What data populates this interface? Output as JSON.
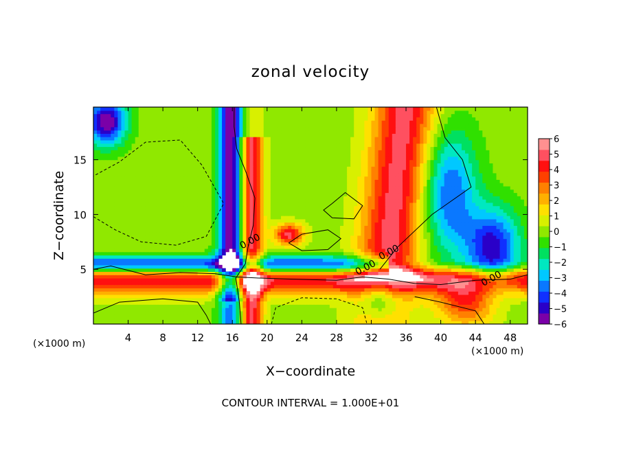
{
  "chart_data": {
    "type": "heatmap",
    "title": "zonal velocity",
    "xlabel": "X−coordinate",
    "ylabel": "Z−coordinate",
    "x_unit_left": "(×1000 m)",
    "x_unit_right": "(×1000 m)",
    "footer": "CONTOUR INTERVAL = 1.000E+01",
    "xlim": [
      0,
      50
    ],
    "ylim": [
      0,
      19.8
    ],
    "x_ticks": [
      4,
      8,
      12,
      16,
      20,
      24,
      28,
      32,
      36,
      40,
      44,
      48
    ],
    "x_tick_labels": [
      "4",
      "8",
      "12",
      "16",
      "20",
      "24",
      "28",
      "32",
      "36",
      "40",
      "44",
      "48"
    ],
    "y_ticks": [
      5,
      10,
      15
    ],
    "y_tick_labels": [
      "5",
      "10",
      "15"
    ],
    "colorbar": {
      "min": -6,
      "max": 6,
      "ticks": [
        6,
        5,
        4,
        3,
        2,
        1,
        0,
        -1,
        -2,
        -3,
        -4,
        -5,
        -6
      ],
      "tick_labels": [
        "6",
        "5",
        "4",
        "3",
        "2",
        "1",
        "0",
        "−1",
        "−2",
        "−3",
        "−4",
        "−5",
        "−6"
      ],
      "colors": [
        "#7a00a8",
        "#2a00c8",
        "#1030ff",
        "#0a78ff",
        "#00c8ff",
        "#00e8c0",
        "#00e060",
        "#30e000",
        "#90e800",
        "#d8f000",
        "#ffe000",
        "#ffb000",
        "#ff8000",
        "#ff4000",
        "#ff1010",
        "#ff5060",
        "#ff9090"
      ]
    },
    "contour_labels": [
      "0.00",
      "0.00",
      "0.00",
      "0.00"
    ],
    "bands": {
      "bottom_jet": {
        "y": 4.2,
        "sigma": 1.0,
        "value": 5
      },
      "upper_shear": {
        "y": 5.4,
        "sigma": 0.6,
        "value": -6
      },
      "column_left": {
        "x": 15.8,
        "sigma": 1.0,
        "value": -6
      },
      "column_right": {
        "x": 18.2,
        "sigma": 0.9,
        "value": 5
      }
    },
    "wedges": {
      "red_plume": {
        "x_center": 35.5,
        "x_at_top": 36,
        "x_at_bottom": 33,
        "value": 5
      },
      "blue_right": {
        "x_center": 46,
        "value": -5
      }
    },
    "grid": false,
    "legend": "colorbar at right"
  }
}
